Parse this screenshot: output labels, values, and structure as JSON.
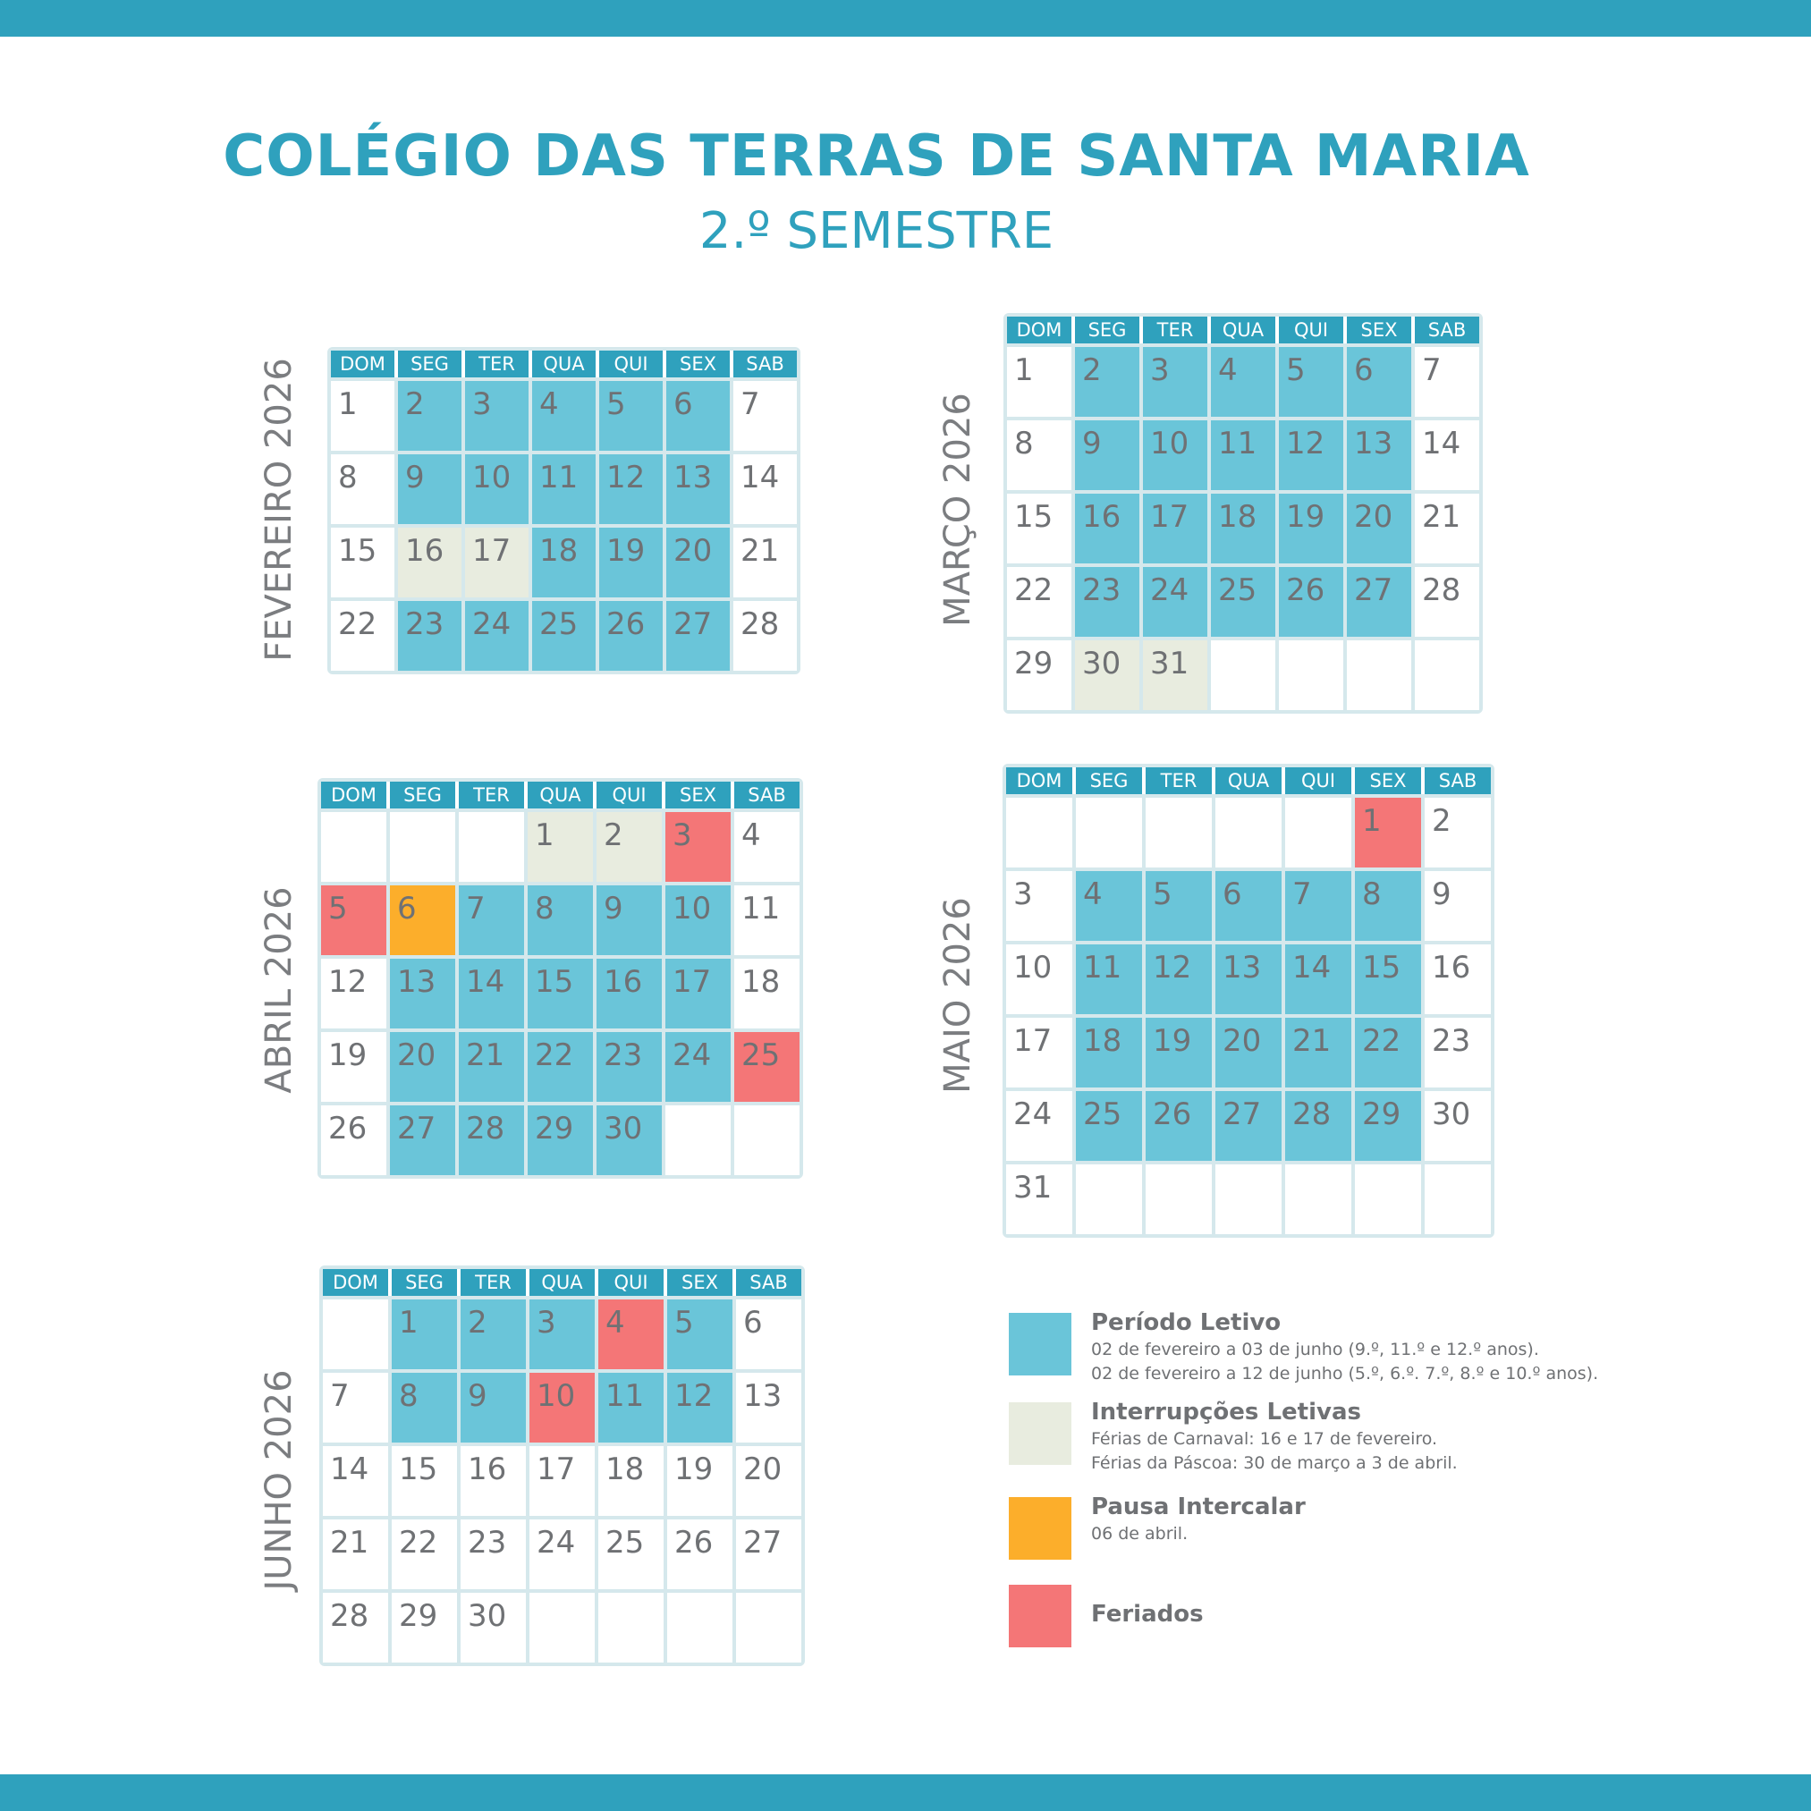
{
  "header": {
    "title": "COLÉGIO DAS TERRAS DE SANTA MARIA",
    "subtitle": "2.º SEMESTRE"
  },
  "weekdays": [
    "DOM",
    "SEG",
    "TER",
    "QUA",
    "QUI",
    "SEX",
    "SAB"
  ],
  "colors": {
    "accent": "#2fa1bd",
    "periodo_letivo": "#6ac5d9",
    "interrupcoes_letivas": "#e8ecdf",
    "pausa_intercalar": "#fcae2b",
    "feriados": "#f47677",
    "grid": "#d5e8ec"
  },
  "months": [
    {
      "name": "FEVEREIRO 2026",
      "weeks": [
        [
          {
            "d": "1"
          },
          {
            "d": "2",
            "t": "letivo"
          },
          {
            "d": "3",
            "t": "letivo"
          },
          {
            "d": "4",
            "t": "letivo"
          },
          {
            "d": "5",
            "t": "letivo"
          },
          {
            "d": "6",
            "t": "letivo"
          },
          {
            "d": "7"
          }
        ],
        [
          {
            "d": "8"
          },
          {
            "d": "9",
            "t": "letivo"
          },
          {
            "d": "10",
            "t": "letivo"
          },
          {
            "d": "11",
            "t": "letivo"
          },
          {
            "d": "12",
            "t": "letivo"
          },
          {
            "d": "13",
            "t": "letivo"
          },
          {
            "d": "14"
          }
        ],
        [
          {
            "d": "15"
          },
          {
            "d": "16",
            "t": "interrup"
          },
          {
            "d": "17",
            "t": "interrup"
          },
          {
            "d": "18",
            "t": "letivo"
          },
          {
            "d": "19",
            "t": "letivo"
          },
          {
            "d": "20",
            "t": "letivo"
          },
          {
            "d": "21"
          }
        ],
        [
          {
            "d": "22"
          },
          {
            "d": "23",
            "t": "letivo"
          },
          {
            "d": "24",
            "t": "letivo"
          },
          {
            "d": "25",
            "t": "letivo"
          },
          {
            "d": "26",
            "t": "letivo"
          },
          {
            "d": "27",
            "t": "letivo"
          },
          {
            "d": "28"
          }
        ]
      ]
    },
    {
      "name": "MARÇO 2026",
      "weeks": [
        [
          {
            "d": "1"
          },
          {
            "d": "2",
            "t": "letivo"
          },
          {
            "d": "3",
            "t": "letivo"
          },
          {
            "d": "4",
            "t": "letivo"
          },
          {
            "d": "5",
            "t": "letivo"
          },
          {
            "d": "6",
            "t": "letivo"
          },
          {
            "d": "7"
          }
        ],
        [
          {
            "d": "8"
          },
          {
            "d": "9",
            "t": "letivo"
          },
          {
            "d": "10",
            "t": "letivo"
          },
          {
            "d": "11",
            "t": "letivo"
          },
          {
            "d": "12",
            "t": "letivo"
          },
          {
            "d": "13",
            "t": "letivo"
          },
          {
            "d": "14"
          }
        ],
        [
          {
            "d": "15"
          },
          {
            "d": "16",
            "t": "letivo"
          },
          {
            "d": "17",
            "t": "letivo"
          },
          {
            "d": "18",
            "t": "letivo"
          },
          {
            "d": "19",
            "t": "letivo"
          },
          {
            "d": "20",
            "t": "letivo"
          },
          {
            "d": "21"
          }
        ],
        [
          {
            "d": "22"
          },
          {
            "d": "23",
            "t": "letivo"
          },
          {
            "d": "24",
            "t": "letivo"
          },
          {
            "d": "25",
            "t": "letivo"
          },
          {
            "d": "26",
            "t": "letivo"
          },
          {
            "d": "27",
            "t": "letivo"
          },
          {
            "d": "28"
          }
        ],
        [
          {
            "d": "29"
          },
          {
            "d": "30",
            "t": "interrup"
          },
          {
            "d": "31",
            "t": "interrup"
          },
          {
            "d": ""
          },
          {
            "d": ""
          },
          {
            "d": ""
          },
          {
            "d": ""
          }
        ]
      ]
    },
    {
      "name": "ABRIL 2026",
      "weeks": [
        [
          {
            "d": ""
          },
          {
            "d": ""
          },
          {
            "d": ""
          },
          {
            "d": "1",
            "t": "interrup"
          },
          {
            "d": "2",
            "t": "interrup"
          },
          {
            "d": "3",
            "t": "feriado"
          },
          {
            "d": "4"
          }
        ],
        [
          {
            "d": "5",
            "t": "feriado"
          },
          {
            "d": "6",
            "t": "pausa"
          },
          {
            "d": "7",
            "t": "letivo"
          },
          {
            "d": "8",
            "t": "letivo"
          },
          {
            "d": "9",
            "t": "letivo"
          },
          {
            "d": "10",
            "t": "letivo"
          },
          {
            "d": "11"
          }
        ],
        [
          {
            "d": "12"
          },
          {
            "d": "13",
            "t": "letivo"
          },
          {
            "d": "14",
            "t": "letivo"
          },
          {
            "d": "15",
            "t": "letivo"
          },
          {
            "d": "16",
            "t": "letivo"
          },
          {
            "d": "17",
            "t": "letivo"
          },
          {
            "d": "18"
          }
        ],
        [
          {
            "d": "19"
          },
          {
            "d": "20",
            "t": "letivo"
          },
          {
            "d": "21",
            "t": "letivo"
          },
          {
            "d": "22",
            "t": "letivo"
          },
          {
            "d": "23",
            "t": "letivo"
          },
          {
            "d": "24",
            "t": "letivo"
          },
          {
            "d": "25",
            "t": "feriado"
          }
        ],
        [
          {
            "d": "26"
          },
          {
            "d": "27",
            "t": "letivo"
          },
          {
            "d": "28",
            "t": "letivo"
          },
          {
            "d": "29",
            "t": "letivo"
          },
          {
            "d": "30",
            "t": "letivo"
          },
          {
            "d": ""
          },
          {
            "d": ""
          }
        ]
      ]
    },
    {
      "name": "MAIO 2026",
      "weeks": [
        [
          {
            "d": ""
          },
          {
            "d": ""
          },
          {
            "d": ""
          },
          {
            "d": ""
          },
          {
            "d": ""
          },
          {
            "d": "1",
            "t": "feriado"
          },
          {
            "d": "2"
          }
        ],
        [
          {
            "d": "3"
          },
          {
            "d": "4",
            "t": "letivo"
          },
          {
            "d": "5",
            "t": "letivo"
          },
          {
            "d": "6",
            "t": "letivo"
          },
          {
            "d": "7",
            "t": "letivo"
          },
          {
            "d": "8",
            "t": "letivo"
          },
          {
            "d": "9"
          }
        ],
        [
          {
            "d": "10"
          },
          {
            "d": "11",
            "t": "letivo"
          },
          {
            "d": "12",
            "t": "letivo"
          },
          {
            "d": "13",
            "t": "letivo"
          },
          {
            "d": "14",
            "t": "letivo"
          },
          {
            "d": "15",
            "t": "letivo"
          },
          {
            "d": "16"
          }
        ],
        [
          {
            "d": "17"
          },
          {
            "d": "18",
            "t": "letivo"
          },
          {
            "d": "19",
            "t": "letivo"
          },
          {
            "d": "20",
            "t": "letivo"
          },
          {
            "d": "21",
            "t": "letivo"
          },
          {
            "d": "22",
            "t": "letivo"
          },
          {
            "d": "23"
          }
        ],
        [
          {
            "d": "24"
          },
          {
            "d": "25",
            "t": "letivo"
          },
          {
            "d": "26",
            "t": "letivo"
          },
          {
            "d": "27",
            "t": "letivo"
          },
          {
            "d": "28",
            "t": "letivo"
          },
          {
            "d": "29",
            "t": "letivo"
          },
          {
            "d": "30"
          }
        ],
        [
          {
            "d": "31"
          },
          {
            "d": ""
          },
          {
            "d": ""
          },
          {
            "d": ""
          },
          {
            "d": ""
          },
          {
            "d": ""
          },
          {
            "d": ""
          }
        ]
      ]
    },
    {
      "name": "JUNHO 2026",
      "weeks": [
        [
          {
            "d": ""
          },
          {
            "d": "1",
            "t": "letivo"
          },
          {
            "d": "2",
            "t": "letivo"
          },
          {
            "d": "3",
            "t": "letivo"
          },
          {
            "d": "4",
            "t": "feriado"
          },
          {
            "d": "5",
            "t": "letivo"
          },
          {
            "d": "6"
          }
        ],
        [
          {
            "d": "7"
          },
          {
            "d": "8",
            "t": "letivo"
          },
          {
            "d": "9",
            "t": "letivo"
          },
          {
            "d": "10",
            "t": "feriado"
          },
          {
            "d": "11",
            "t": "letivo"
          },
          {
            "d": "12",
            "t": "letivo"
          },
          {
            "d": "13"
          }
        ],
        [
          {
            "d": "14"
          },
          {
            "d": "15"
          },
          {
            "d": "16"
          },
          {
            "d": "17"
          },
          {
            "d": "18"
          },
          {
            "d": "19"
          },
          {
            "d": "20"
          }
        ],
        [
          {
            "d": "21"
          },
          {
            "d": "22"
          },
          {
            "d": "23"
          },
          {
            "d": "24"
          },
          {
            "d": "25"
          },
          {
            "d": "26"
          },
          {
            "d": "27"
          }
        ],
        [
          {
            "d": "28"
          },
          {
            "d": "29"
          },
          {
            "d": "30"
          },
          {
            "d": ""
          },
          {
            "d": ""
          },
          {
            "d": ""
          },
          {
            "d": ""
          }
        ]
      ]
    }
  ],
  "legend": [
    {
      "key": "letivo",
      "title": "Período Letivo",
      "lines": [
        "02 de fevereiro a 03 de junho (9.º, 11.º e 12.º anos).",
        "02 de fevereiro a 12 de junho (5.º, 6.º. 7.º, 8.º e 10.º anos)."
      ]
    },
    {
      "key": "interrup",
      "title": "Interrupções Letivas",
      "lines": [
        "Férias de Carnaval: 16 e 17 de fevereiro.",
        "Férias da Páscoa: 30 de março a 3 de abril."
      ]
    },
    {
      "key": "pausa",
      "title": "Pausa Intercalar",
      "lines": [
        "06 de abril."
      ]
    },
    {
      "key": "feriado",
      "title": "Feriados",
      "lines": []
    }
  ]
}
